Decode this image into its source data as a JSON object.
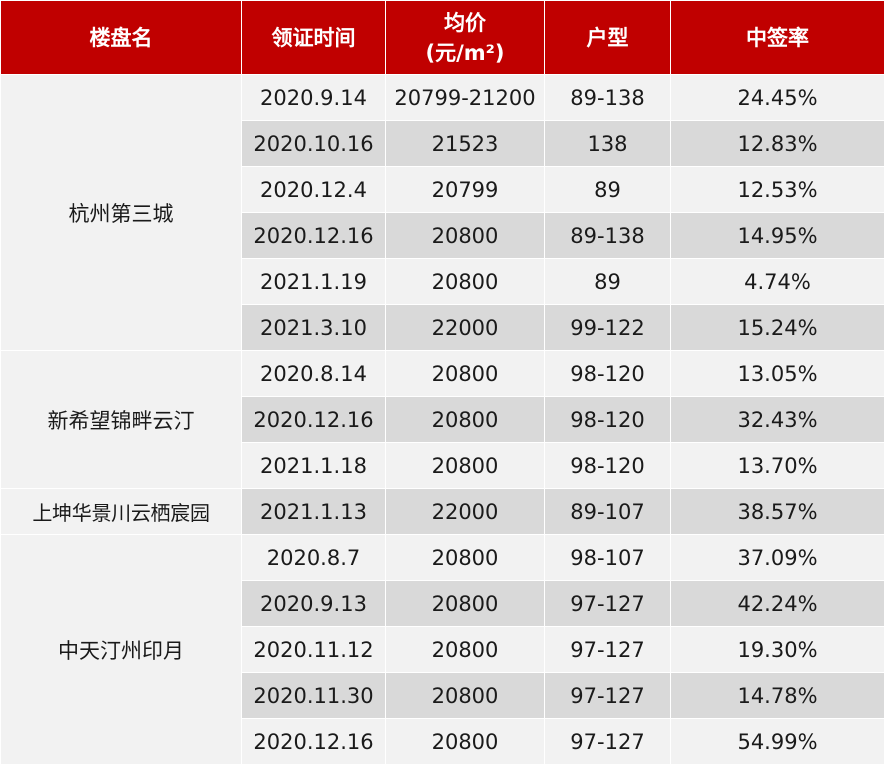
{
  "table": {
    "headers": {
      "project": "楼盘名",
      "cert_date": "领证时间",
      "avg_price_line1": "均价",
      "avg_price_line2": "(元/m²)",
      "unit_type": "户型",
      "win_rate": "中签率"
    },
    "groups": [
      {
        "name": "杭州第三城",
        "rows": [
          {
            "date": "2020.9.14",
            "price": "20799-21200",
            "type": "89-138",
            "rate": "24.45%"
          },
          {
            "date": "2020.10.16",
            "price": "21523",
            "type": "138",
            "rate": "12.83%"
          },
          {
            "date": "2020.12.4",
            "price": "20799",
            "type": "89",
            "rate": "12.53%"
          },
          {
            "date": "2020.12.16",
            "price": "20800",
            "type": "89-138",
            "rate": "14.95%"
          },
          {
            "date": "2021.1.19",
            "price": "20800",
            "type": "89",
            "rate": "4.74%"
          },
          {
            "date": "2021.3.10",
            "price": "22000",
            "type": "99-122",
            "rate": "15.24%"
          }
        ]
      },
      {
        "name": "新希望锦畔云汀",
        "rows": [
          {
            "date": "2020.8.14",
            "price": "20800",
            "type": "98-120",
            "rate": "13.05%"
          },
          {
            "date": "2020.12.16",
            "price": "20800",
            "type": "98-120",
            "rate": "32.43%"
          },
          {
            "date": "2021.1.18",
            "price": "20800",
            "type": "98-120",
            "rate": "13.70%"
          }
        ]
      },
      {
        "name": "上坤华景川云栖宸园",
        "rows": [
          {
            "date": "2021.1.13",
            "price": "22000",
            "type": "89-107",
            "rate": "38.57%"
          }
        ]
      },
      {
        "name": "中天汀州印月",
        "rows": [
          {
            "date": "2020.8.7",
            "price": "20800",
            "type": "98-107",
            "rate": "37.09%"
          },
          {
            "date": "2020.9.13",
            "price": "20800",
            "type": "97-127",
            "rate": "42.24%"
          },
          {
            "date": "2020.11.12",
            "price": "20800",
            "type": "97-127",
            "rate": "19.30%"
          },
          {
            "date": "2020.11.30",
            "price": "20800",
            "type": "97-127",
            "rate": "14.78%"
          },
          {
            "date": "2020.12.16",
            "price": "20800",
            "type": "97-127",
            "rate": "54.99%"
          }
        ]
      }
    ],
    "colors": {
      "header_bg": "#c00000",
      "header_text": "#ffffff",
      "row_light": "#f2f2f2",
      "row_dark": "#d9d9d9"
    }
  }
}
